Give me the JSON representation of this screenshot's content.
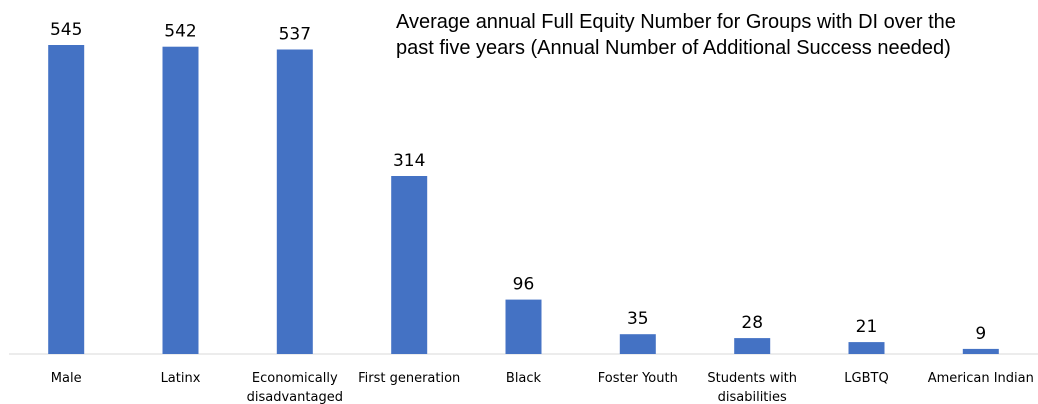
{
  "chart_data": {
    "type": "bar",
    "title_lines": [
      "Average annual Full Equity Number for Groups with DI over the",
      "past five years (Annual Number of Additional Success needed)"
    ],
    "categories": [
      [
        "Male"
      ],
      [
        "Latinx"
      ],
      [
        "Economically",
        "disadvantaged"
      ],
      [
        "First generation"
      ],
      [
        "Black"
      ],
      [
        "Foster Youth"
      ],
      [
        "Students with",
        "disabilities"
      ],
      [
        "LGBTQ"
      ],
      [
        "American Indian"
      ]
    ],
    "values": [
      545,
      542,
      537,
      314,
      96,
      35,
      28,
      21,
      9
    ],
    "ylim": [
      0,
      545
    ],
    "bar_color": "#4472C4",
    "axis_color": "#D9D9D9",
    "grid": false,
    "legend": "none"
  }
}
